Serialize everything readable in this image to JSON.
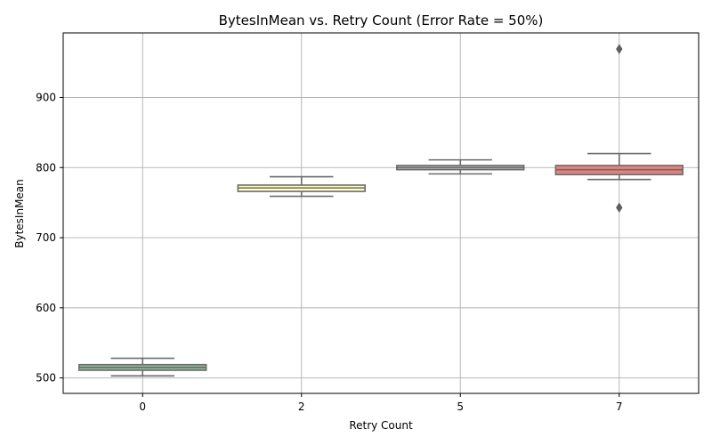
{
  "chart_data": {
    "type": "box",
    "title": "BytesInMean vs. Retry Count (Error Rate = 50%)",
    "xlabel": "Retry Count",
    "ylabel": "BytesInMean",
    "categories": [
      "0",
      "2",
      "5",
      "7"
    ],
    "ylim": [
      478,
      992
    ],
    "yticks": [
      500,
      600,
      700,
      800,
      900
    ],
    "grid": true,
    "boxes": [
      {
        "category": "0",
        "whisker_low": 503,
        "q1": 511,
        "median": 515,
        "q3": 519,
        "whisker_high": 528,
        "outliers": [],
        "color": "#8fbc9f"
      },
      {
        "category": "2",
        "whisker_low": 759,
        "q1": 766,
        "median": 771,
        "q3": 775,
        "whisker_high": 787,
        "outliers": [],
        "color": "#ffffbf"
      },
      {
        "category": "5",
        "whisker_low": 791,
        "q1": 797,
        "median": 800,
        "q3": 803,
        "whisker_high": 811,
        "outliers": [],
        "color": "#c1c1c1"
      },
      {
        "category": "7",
        "whisker_low": 783,
        "q1": 790,
        "median": 797,
        "q3": 803,
        "whisker_high": 820,
        "outliers": [
          969,
          743
        ],
        "color": "#e8807a"
      }
    ]
  }
}
